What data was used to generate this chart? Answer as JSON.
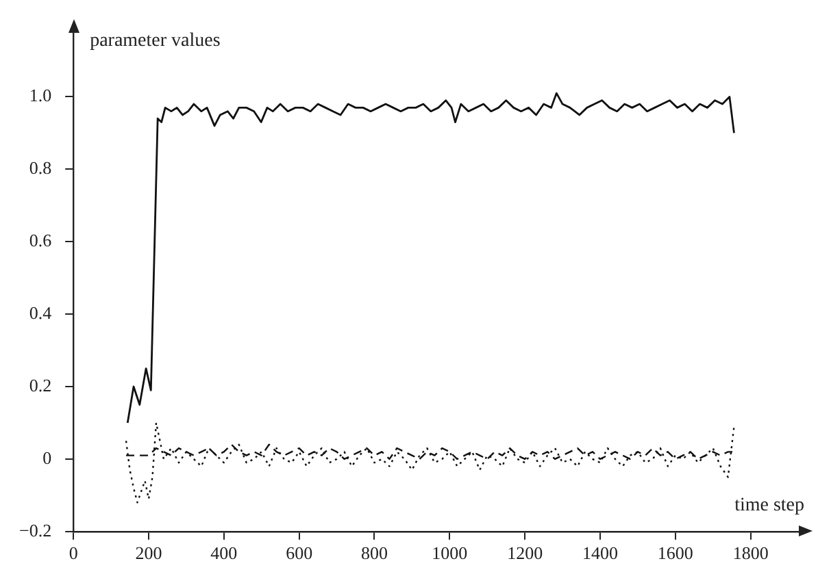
{
  "chart_data": {
    "type": "line",
    "xlabel": "time step",
    "ylabel": "parameter values",
    "xlim": [
      0,
      1950
    ],
    "xticks": [
      0,
      200,
      400,
      600,
      800,
      1000,
      1200,
      1400,
      1600,
      1800
    ],
    "ylim": [
      -0.2,
      1.2
    ],
    "yticks": [
      {
        "value": -0.2,
        "label": "−0.2"
      },
      0,
      0.2,
      0.4,
      0.6,
      0.8,
      {
        "value": 1.0,
        "label": "1.0"
      }
    ],
    "grid": false,
    "legend": false,
    "marker": "none",
    "series": [
      {
        "color": "#111111",
        "line_style": "solid",
        "x": [
          144,
          160,
          176,
          193,
          206,
          224,
          234,
          244,
          260,
          275,
          290,
          305,
          320,
          340,
          355,
          375,
          390,
          410,
          425,
          440,
          460,
          480,
          499,
          515,
          530,
          550,
          570,
          590,
          610,
          630,
          650,
          670,
          690,
          710,
          730,
          750,
          770,
          790,
          810,
          830,
          850,
          870,
          890,
          910,
          930,
          950,
          970,
          990,
          1005,
          1015,
          1030,
          1050,
          1070,
          1090,
          1110,
          1130,
          1150,
          1170,
          1190,
          1210,
          1230,
          1250,
          1270,
          1284,
          1300,
          1320,
          1345,
          1365,
          1385,
          1405,
          1425,
          1445,
          1465,
          1485,
          1505,
          1525,
          1545,
          1565,
          1585,
          1605,
          1625,
          1645,
          1665,
          1685,
          1705,
          1725,
          1744,
          1756
        ],
        "values": [
          0.1,
          0.2,
          0.15,
          0.25,
          0.19,
          0.94,
          0.93,
          0.97,
          0.96,
          0.97,
          0.95,
          0.96,
          0.98,
          0.96,
          0.97,
          0.92,
          0.95,
          0.96,
          0.94,
          0.97,
          0.97,
          0.96,
          0.93,
          0.97,
          0.96,
          0.98,
          0.96,
          0.97,
          0.97,
          0.96,
          0.98,
          0.97,
          0.96,
          0.95,
          0.98,
          0.97,
          0.97,
          0.96,
          0.97,
          0.98,
          0.97,
          0.96,
          0.97,
          0.97,
          0.98,
          0.96,
          0.97,
          0.99,
          0.97,
          0.93,
          0.98,
          0.96,
          0.97,
          0.98,
          0.96,
          0.97,
          0.99,
          0.97,
          0.96,
          0.97,
          0.95,
          0.98,
          0.97,
          1.01,
          0.98,
          0.97,
          0.95,
          0.97,
          0.98,
          0.99,
          0.97,
          0.96,
          0.98,
          0.97,
          0.98,
          0.96,
          0.97,
          0.98,
          0.99,
          0.97,
          0.98,
          0.96,
          0.98,
          0.97,
          0.99,
          0.98,
          1.0,
          0.9
        ]
      },
      {
        "color": "#111111",
        "line_style": "dashed",
        "x": [
          140,
          150,
          160,
          170,
          180,
          190,
          200,
          210,
          220,
          240,
          260,
          280,
          300,
          320,
          340,
          360,
          380,
          400,
          420,
          440,
          460,
          480,
          500,
          520,
          540,
          560,
          580,
          600,
          620,
          640,
          660,
          680,
          700,
          720,
          740,
          760,
          780,
          800,
          820,
          840,
          860,
          880,
          900,
          920,
          940,
          960,
          980,
          1000,
          1020,
          1040,
          1060,
          1080,
          1100,
          1120,
          1140,
          1160,
          1180,
          1200,
          1220,
          1240,
          1260,
          1280,
          1300,
          1320,
          1340,
          1360,
          1380,
          1400,
          1420,
          1440,
          1460,
          1480,
          1500,
          1520,
          1540,
          1560,
          1580,
          1600,
          1620,
          1640,
          1660,
          1680,
          1700,
          1720,
          1740,
          1756
        ],
        "values": [
          0.01,
          0.01,
          0.01,
          0.01,
          0.01,
          0.01,
          0.01,
          0.02,
          0.03,
          0.02,
          0.01,
          0.03,
          0.02,
          0.01,
          0.02,
          0.03,
          0.01,
          0.02,
          0.04,
          0.02,
          0.01,
          0.02,
          0.01,
          0.04,
          0.02,
          0.01,
          0.02,
          0.03,
          0.01,
          0.02,
          0.01,
          0.03,
          0.02,
          0.0,
          0.01,
          0.02,
          0.03,
          0.01,
          0.02,
          0.0,
          0.03,
          0.02,
          0.01,
          0.0,
          0.02,
          0.01,
          0.03,
          0.02,
          0.0,
          0.01,
          0.02,
          0.01,
          0.0,
          0.02,
          0.01,
          0.03,
          0.01,
          0.0,
          0.02,
          0.01,
          0.02,
          0.0,
          0.01,
          0.02,
          0.03,
          0.01,
          0.02,
          0.0,
          0.01,
          0.02,
          0.01,
          0.0,
          0.02,
          0.01,
          0.03,
          0.01,
          0.02,
          0.0,
          0.01,
          0.02,
          0.0,
          0.01,
          0.02,
          0.01,
          0.02,
          0.02
        ]
      },
      {
        "color": "#111111",
        "line_style": "dotted",
        "x": [
          140,
          150,
          160,
          170,
          180,
          190,
          200,
          210,
          220,
          240,
          260,
          280,
          300,
          320,
          340,
          360,
          380,
          400,
          420,
          440,
          460,
          480,
          500,
          520,
          540,
          560,
          580,
          600,
          620,
          640,
          660,
          680,
          700,
          720,
          740,
          760,
          780,
          800,
          820,
          840,
          860,
          880,
          900,
          920,
          940,
          960,
          980,
          1000,
          1020,
          1040,
          1060,
          1080,
          1100,
          1120,
          1140,
          1160,
          1180,
          1200,
          1220,
          1240,
          1260,
          1280,
          1300,
          1320,
          1340,
          1360,
          1380,
          1400,
          1420,
          1440,
          1460,
          1480,
          1500,
          1520,
          1540,
          1560,
          1580,
          1600,
          1620,
          1640,
          1660,
          1680,
          1700,
          1720,
          1740,
          1756
        ],
        "values": [
          0.05,
          -0.03,
          -0.08,
          -0.12,
          -0.09,
          -0.06,
          -0.11,
          -0.05,
          0.1,
          0.0,
          0.03,
          -0.01,
          0.02,
          0.0,
          -0.02,
          0.03,
          0.01,
          -0.01,
          0.02,
          0.04,
          -0.01,
          0.0,
          0.02,
          -0.02,
          0.03,
          0.0,
          -0.01,
          0.02,
          -0.02,
          0.01,
          0.03,
          -0.01,
          0.0,
          0.02,
          -0.02,
          0.01,
          0.03,
          -0.01,
          0.0,
          -0.02,
          0.02,
          0.0,
          -0.03,
          0.01,
          0.03,
          -0.01,
          0.0,
          0.02,
          -0.02,
          0.0,
          0.02,
          -0.03,
          0.01,
          0.0,
          -0.02,
          0.03,
          0.0,
          -0.01,
          0.02,
          -0.02,
          0.01,
          0.03,
          -0.01,
          0.0,
          -0.02,
          0.02,
          0.0,
          -0.01,
          0.03,
          0.0,
          -0.02,
          0.01,
          0.02,
          -0.01,
          0.0,
          0.03,
          -0.02,
          0.01,
          0.0,
          0.02,
          -0.01,
          0.01,
          0.03,
          -0.02,
          -0.05,
          0.09
        ]
      }
    ]
  }
}
